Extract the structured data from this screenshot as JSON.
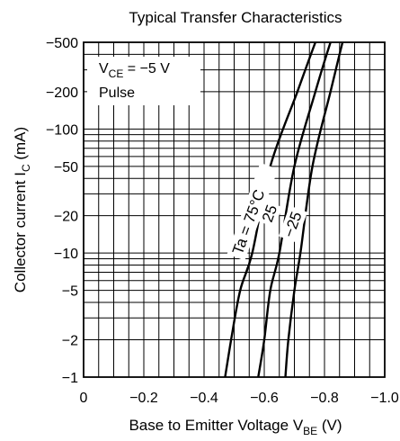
{
  "chart_data": {
    "type": "line",
    "title": "Typical Transfer Characteristics",
    "xlabel": {
      "main": "Base to Emitter Voltage  V",
      "sub": "BE",
      "unit": "  (V)"
    },
    "ylabel": {
      "main": "Collector current  I",
      "sub": "C",
      "unit": "  (mA)"
    },
    "xlim": [
      0,
      -1.0
    ],
    "ylim": [
      -1,
      -500
    ],
    "yscale": "log",
    "grid": true,
    "x_ticks": [
      0,
      -0.2,
      -0.4,
      -0.6,
      -0.8,
      -1.0
    ],
    "x_tick_labels": [
      "0",
      "−0.2",
      "−0.4",
      "−0.6",
      "−0.8",
      "−1.0"
    ],
    "y_ticks": [
      -500,
      -200,
      -100,
      -50,
      -20,
      -10,
      -5,
      -2,
      -1
    ],
    "y_tick_labels": [
      "−500",
      "−200",
      "−100",
      "−50",
      "−20",
      "−10",
      "−5",
      "−2",
      "−1"
    ],
    "conditions": {
      "line1_main": "V",
      "line1_sub": "CE",
      "line1_rest": " = −5 V",
      "line2": "Pulse"
    },
    "series": [
      {
        "name": "Ta = 75°C",
        "x": [
          -0.47,
          -0.49,
          -0.52,
          -0.56,
          -0.62,
          -0.71,
          -0.77
        ],
        "y": [
          -1,
          -2,
          -5,
          -10,
          -50,
          -200,
          -500
        ]
      },
      {
        "name": "25",
        "x": [
          -0.58,
          -0.6,
          -0.62,
          -0.65,
          -0.7,
          -0.77,
          -0.82
        ],
        "y": [
          -1,
          -2,
          -5,
          -10,
          -50,
          -200,
          -500
        ]
      },
      {
        "name": "−25",
        "x": [
          -0.67,
          -0.68,
          -0.7,
          -0.72,
          -0.76,
          -0.82,
          -0.86
        ],
        "y": [
          -1,
          -2,
          -5,
          -10,
          -50,
          -200,
          -500
        ]
      }
    ]
  }
}
